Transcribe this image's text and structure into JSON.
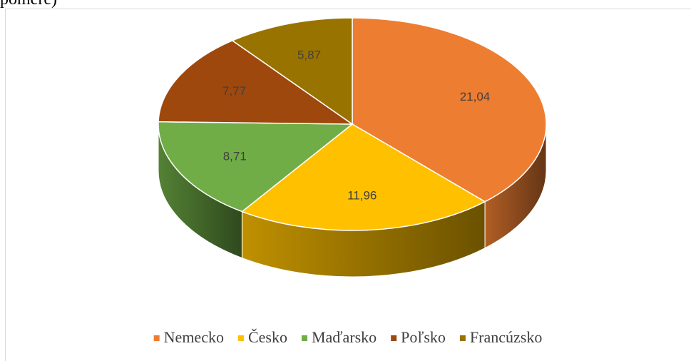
{
  "caption": "pomere)",
  "chart_data": {
    "type": "pie3d",
    "categories": [
      "Nemecko",
      "Česko",
      "Maďarsko",
      "Poľsko",
      "Francúzsko"
    ],
    "values": [
      21.04,
      11.96,
      8.71,
      7.77,
      5.87
    ],
    "value_labels": [
      "21,04",
      "11,96",
      "8,71",
      "7,77",
      "5,87"
    ],
    "colors": [
      "#ED7D31",
      "#FFC000",
      "#70AD47",
      "#9E480E",
      "#997300"
    ],
    "legend": "bottom"
  }
}
